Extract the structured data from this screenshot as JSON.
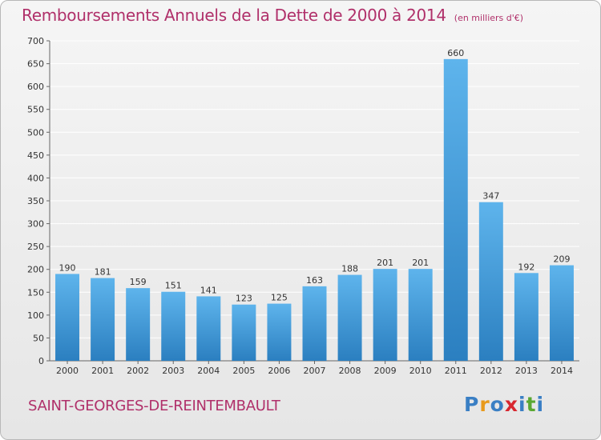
{
  "title": "Remboursements Annuels de la Dette de 2000 à 2014",
  "unit_note": "(en milliers d'€)",
  "commune": "SAINT-GEORGES-DE-REINTEMBAULT",
  "logo": {
    "text": "Proxiti",
    "letters": [
      "P",
      "r",
      "o",
      "x",
      "i",
      "t",
      "i"
    ],
    "colors": [
      "#3a7fc4",
      "#e89a1c",
      "#3a7fc4",
      "#d8272f",
      "#3a7fc4",
      "#5aa832",
      "#3a7fc4"
    ]
  },
  "colors": {
    "title": "#b0306a",
    "bar_top": "#5eb4ec",
    "bar_bottom": "#2b7fc0",
    "grid": "#ffffff"
  },
  "chart_data": {
    "type": "bar",
    "categories": [
      "2000",
      "2001",
      "2002",
      "2003",
      "2004",
      "2005",
      "2006",
      "2007",
      "2008",
      "2009",
      "2010",
      "2011",
      "2012",
      "2013",
      "2014"
    ],
    "values": [
      190,
      181,
      159,
      151,
      141,
      123,
      125,
      163,
      188,
      201,
      201,
      660,
      347,
      192,
      209
    ],
    "value_labels": [
      "190",
      "181",
      "159",
      "151",
      "141",
      "123",
      "125",
      "163",
      "188",
      "201",
      "201",
      "660",
      "347",
      "192",
      "209"
    ],
    "ylim": [
      0,
      700
    ],
    "yticks": [
      0,
      50,
      100,
      150,
      200,
      250,
      300,
      350,
      400,
      450,
      500,
      550,
      600,
      650,
      700
    ],
    "ytick_labels": [
      "0",
      "50",
      "100",
      "150",
      "200",
      "250",
      "300",
      "350",
      "400",
      "450",
      "500",
      "550",
      "600",
      "650",
      "700"
    ],
    "grid": true,
    "xlabel": "",
    "ylabel": ""
  }
}
